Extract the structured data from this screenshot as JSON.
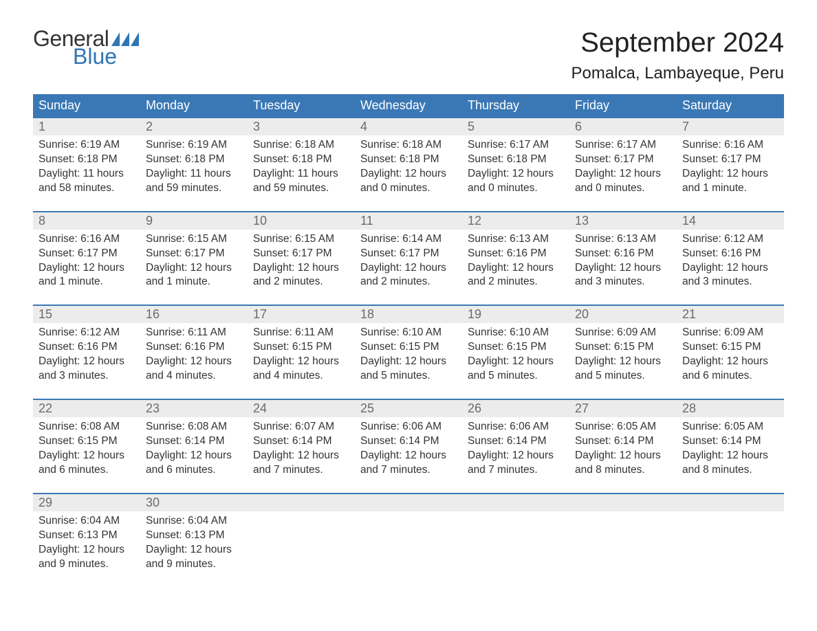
{
  "logo": {
    "text_general": "General",
    "text_blue": "Blue",
    "flag_color": "#2f74b5"
  },
  "title": {
    "month_year": "September 2024",
    "location": "Pomalca, Lambayeque, Peru"
  },
  "colors": {
    "header_bg": "#3a78b5",
    "header_text": "#ffffff",
    "daynum_bg": "#ececec",
    "daynum_text": "#6b6b6b",
    "body_text": "#333333",
    "row_border": "#3a78b5",
    "page_bg": "#ffffff"
  },
  "typography": {
    "month_title_fontsize": 40,
    "location_fontsize": 24,
    "weekday_fontsize": 18,
    "daynum_fontsize": 18,
    "body_fontsize": 15.5,
    "font_family": "Arial"
  },
  "weekdays": [
    "Sunday",
    "Monday",
    "Tuesday",
    "Wednesday",
    "Thursday",
    "Friday",
    "Saturday"
  ],
  "weeks": [
    [
      {
        "num": "1",
        "sunrise": "Sunrise: 6:19 AM",
        "sunset": "Sunset: 6:18 PM",
        "daylight1": "Daylight: 11 hours",
        "daylight2": "and 58 minutes."
      },
      {
        "num": "2",
        "sunrise": "Sunrise: 6:19 AM",
        "sunset": "Sunset: 6:18 PM",
        "daylight1": "Daylight: 11 hours",
        "daylight2": "and 59 minutes."
      },
      {
        "num": "3",
        "sunrise": "Sunrise: 6:18 AM",
        "sunset": "Sunset: 6:18 PM",
        "daylight1": "Daylight: 11 hours",
        "daylight2": "and 59 minutes."
      },
      {
        "num": "4",
        "sunrise": "Sunrise: 6:18 AM",
        "sunset": "Sunset: 6:18 PM",
        "daylight1": "Daylight: 12 hours",
        "daylight2": "and 0 minutes."
      },
      {
        "num": "5",
        "sunrise": "Sunrise: 6:17 AM",
        "sunset": "Sunset: 6:18 PM",
        "daylight1": "Daylight: 12 hours",
        "daylight2": "and 0 minutes."
      },
      {
        "num": "6",
        "sunrise": "Sunrise: 6:17 AM",
        "sunset": "Sunset: 6:17 PM",
        "daylight1": "Daylight: 12 hours",
        "daylight2": "and 0 minutes."
      },
      {
        "num": "7",
        "sunrise": "Sunrise: 6:16 AM",
        "sunset": "Sunset: 6:17 PM",
        "daylight1": "Daylight: 12 hours",
        "daylight2": "and 1 minute."
      }
    ],
    [
      {
        "num": "8",
        "sunrise": "Sunrise: 6:16 AM",
        "sunset": "Sunset: 6:17 PM",
        "daylight1": "Daylight: 12 hours",
        "daylight2": "and 1 minute."
      },
      {
        "num": "9",
        "sunrise": "Sunrise: 6:15 AM",
        "sunset": "Sunset: 6:17 PM",
        "daylight1": "Daylight: 12 hours",
        "daylight2": "and 1 minute."
      },
      {
        "num": "10",
        "sunrise": "Sunrise: 6:15 AM",
        "sunset": "Sunset: 6:17 PM",
        "daylight1": "Daylight: 12 hours",
        "daylight2": "and 2 minutes."
      },
      {
        "num": "11",
        "sunrise": "Sunrise: 6:14 AM",
        "sunset": "Sunset: 6:17 PM",
        "daylight1": "Daylight: 12 hours",
        "daylight2": "and 2 minutes."
      },
      {
        "num": "12",
        "sunrise": "Sunrise: 6:13 AM",
        "sunset": "Sunset: 6:16 PM",
        "daylight1": "Daylight: 12 hours",
        "daylight2": "and 2 minutes."
      },
      {
        "num": "13",
        "sunrise": "Sunrise: 6:13 AM",
        "sunset": "Sunset: 6:16 PM",
        "daylight1": "Daylight: 12 hours",
        "daylight2": "and 3 minutes."
      },
      {
        "num": "14",
        "sunrise": "Sunrise: 6:12 AM",
        "sunset": "Sunset: 6:16 PM",
        "daylight1": "Daylight: 12 hours",
        "daylight2": "and 3 minutes."
      }
    ],
    [
      {
        "num": "15",
        "sunrise": "Sunrise: 6:12 AM",
        "sunset": "Sunset: 6:16 PM",
        "daylight1": "Daylight: 12 hours",
        "daylight2": "and 3 minutes."
      },
      {
        "num": "16",
        "sunrise": "Sunrise: 6:11 AM",
        "sunset": "Sunset: 6:16 PM",
        "daylight1": "Daylight: 12 hours",
        "daylight2": "and 4 minutes."
      },
      {
        "num": "17",
        "sunrise": "Sunrise: 6:11 AM",
        "sunset": "Sunset: 6:15 PM",
        "daylight1": "Daylight: 12 hours",
        "daylight2": "and 4 minutes."
      },
      {
        "num": "18",
        "sunrise": "Sunrise: 6:10 AM",
        "sunset": "Sunset: 6:15 PM",
        "daylight1": "Daylight: 12 hours",
        "daylight2": "and 5 minutes."
      },
      {
        "num": "19",
        "sunrise": "Sunrise: 6:10 AM",
        "sunset": "Sunset: 6:15 PM",
        "daylight1": "Daylight: 12 hours",
        "daylight2": "and 5 minutes."
      },
      {
        "num": "20",
        "sunrise": "Sunrise: 6:09 AM",
        "sunset": "Sunset: 6:15 PM",
        "daylight1": "Daylight: 12 hours",
        "daylight2": "and 5 minutes."
      },
      {
        "num": "21",
        "sunrise": "Sunrise: 6:09 AM",
        "sunset": "Sunset: 6:15 PM",
        "daylight1": "Daylight: 12 hours",
        "daylight2": "and 6 minutes."
      }
    ],
    [
      {
        "num": "22",
        "sunrise": "Sunrise: 6:08 AM",
        "sunset": "Sunset: 6:15 PM",
        "daylight1": "Daylight: 12 hours",
        "daylight2": "and 6 minutes."
      },
      {
        "num": "23",
        "sunrise": "Sunrise: 6:08 AM",
        "sunset": "Sunset: 6:14 PM",
        "daylight1": "Daylight: 12 hours",
        "daylight2": "and 6 minutes."
      },
      {
        "num": "24",
        "sunrise": "Sunrise: 6:07 AM",
        "sunset": "Sunset: 6:14 PM",
        "daylight1": "Daylight: 12 hours",
        "daylight2": "and 7 minutes."
      },
      {
        "num": "25",
        "sunrise": "Sunrise: 6:06 AM",
        "sunset": "Sunset: 6:14 PM",
        "daylight1": "Daylight: 12 hours",
        "daylight2": "and 7 minutes."
      },
      {
        "num": "26",
        "sunrise": "Sunrise: 6:06 AM",
        "sunset": "Sunset: 6:14 PM",
        "daylight1": "Daylight: 12 hours",
        "daylight2": "and 7 minutes."
      },
      {
        "num": "27",
        "sunrise": "Sunrise: 6:05 AM",
        "sunset": "Sunset: 6:14 PM",
        "daylight1": "Daylight: 12 hours",
        "daylight2": "and 8 minutes."
      },
      {
        "num": "28",
        "sunrise": "Sunrise: 6:05 AM",
        "sunset": "Sunset: 6:14 PM",
        "daylight1": "Daylight: 12 hours",
        "daylight2": "and 8 minutes."
      }
    ],
    [
      {
        "num": "29",
        "sunrise": "Sunrise: 6:04 AM",
        "sunset": "Sunset: 6:13 PM",
        "daylight1": "Daylight: 12 hours",
        "daylight2": "and 9 minutes."
      },
      {
        "num": "30",
        "sunrise": "Sunrise: 6:04 AM",
        "sunset": "Sunset: 6:13 PM",
        "daylight1": "Daylight: 12 hours",
        "daylight2": "and 9 minutes."
      },
      {
        "empty": true
      },
      {
        "empty": true
      },
      {
        "empty": true
      },
      {
        "empty": true
      },
      {
        "empty": true
      }
    ]
  ]
}
